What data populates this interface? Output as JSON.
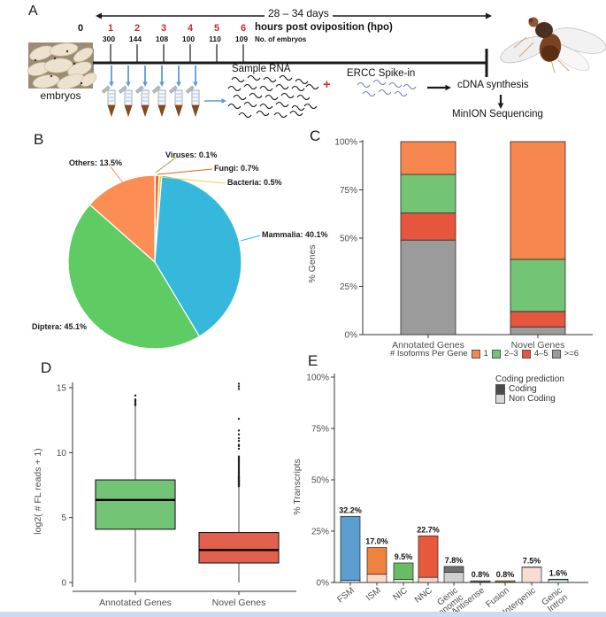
{
  "panelA": {
    "label": "A",
    "duration": "28 – 34 days",
    "hours": [
      "0",
      "1",
      "2",
      "3",
      "4",
      "5",
      "6"
    ],
    "hours_title": "hours post oviposition (hpo)",
    "embryo_counts": [
      "300",
      "144",
      "108",
      "100",
      "110",
      "109"
    ],
    "counts_caption": "No. of embryos",
    "embryos_caption": "embryos",
    "sample_rna": "Sample RNA",
    "plus": "+",
    "ercc": "ERCC Spike-in",
    "cdna": "cDNA synthesis",
    "minion": "MinION Sequencing"
  },
  "panelB": {
    "label": "B"
  },
  "panelC": {
    "label": "C"
  },
  "panelD": {
    "label": "D"
  },
  "panelE": {
    "label": "E"
  },
  "chart_data": [
    {
      "panel": "B",
      "type": "pie",
      "labels": [
        "Viruses",
        "Fungi",
        "Bacteria",
        "Mammalia",
        "Diptera",
        "Others"
      ],
      "values": [
        0.1,
        0.7,
        0.5,
        40.1,
        45.1,
        13.5
      ],
      "colors": [
        "#9aa83b",
        "#e0642e",
        "#e6d44e",
        "#35b8db",
        "#5ecc62",
        "#fb8d55"
      ],
      "start_angle": "12-oclock",
      "direction": "clockwise",
      "annotations": [
        {
          "slice": "Others",
          "text": "Others: 13.5%"
        },
        {
          "slice": "Viruses",
          "text": "Viruses: 0.1%"
        },
        {
          "slice": "Fungi",
          "text": "Fungi: 0.7%"
        },
        {
          "slice": "Bacteria",
          "text": "Bacteria: 0.5%"
        },
        {
          "slice": "Mammalia",
          "text": "Mammalia: 40.1%"
        },
        {
          "slice": "Diptera",
          "text": "Diptera: 45.1%"
        }
      ]
    },
    {
      "panel": "C",
      "type": "bar",
      "subtype": "stacked-percent",
      "ylabel": "% Genes",
      "yticks": [
        "0%",
        "25%",
        "50%",
        "75%",
        "100%"
      ],
      "ylim": [
        0,
        100
      ],
      "categories": [
        "Annotated Genes",
        "Novel Genes"
      ],
      "legend_title": "# Isoforms Per Gene",
      "legend_position": "bottom",
      "series": [
        {
          "name": "1",
          "color": "#f8864f",
          "values": [
            17,
            61
          ]
        },
        {
          "name": "2–3",
          "color": "#74c476",
          "values": [
            20,
            27
          ]
        },
        {
          "name": "4–5",
          "color": "#e6553d",
          "values": [
            14,
            8
          ]
        },
        {
          "name": ">=6",
          "color": "#9b9b9b",
          "values": [
            49,
            4
          ]
        }
      ],
      "stack_order": "top-to-bottom as listed"
    },
    {
      "panel": "D",
      "type": "boxplot",
      "ylabel": "log2( # FL reads + 1)",
      "yticks": [
        0,
        5,
        10,
        15
      ],
      "ylim": [
        0,
        15.5
      ],
      "categories": [
        "Annotated Genes",
        "Novel Genes"
      ],
      "boxes": [
        {
          "category": "Annotated Genes",
          "color": "#74c476",
          "whisker_low": 0,
          "q1": 4.1,
          "median": 6.35,
          "q3": 7.9,
          "whisker_high": 13.6,
          "outliers": [
            13.65,
            13.7,
            13.75,
            13.8,
            13.9,
            14.0,
            14.1,
            14.4
          ]
        },
        {
          "category": "Novel Genes",
          "color": "#e2614e",
          "whisker_low": 0,
          "q1": 1.5,
          "median": 2.5,
          "q3": 3.85,
          "whisker_high": 7.3,
          "outliers": [
            7.4,
            7.45,
            7.5,
            7.55,
            7.6,
            7.65,
            7.7,
            7.75,
            7.8,
            7.85,
            7.9,
            7.95,
            8.0,
            8.05,
            8.1,
            8.15,
            8.2,
            8.3,
            8.4,
            8.5,
            8.6,
            8.7,
            8.8,
            8.9,
            9.0,
            9.1,
            9.2,
            9.3,
            9.4,
            9.5,
            9.6,
            9.7,
            10.3,
            10.5,
            10.6,
            10.9,
            11.1,
            11.4,
            11.7,
            12.6,
            14.9,
            15.1,
            15.3
          ]
        }
      ]
    },
    {
      "panel": "E",
      "type": "bar",
      "subtype": "stacked",
      "ylabel": "% Transcripts",
      "yticks": [
        "0%",
        "25%",
        "50%",
        "75%",
        "100%"
      ],
      "ylim": [
        0,
        100
      ],
      "legend_title": "Coding prediction",
      "legend_items": [
        {
          "name": "Coding",
          "color": "#4a4a4a"
        },
        {
          "name": "Non Coding",
          "color": "#d9d9d9"
        }
      ],
      "categories": [
        "FSM",
        "ISM",
        "NIC",
        "NNC",
        "Genic\nGenomic",
        "Antisense",
        "Fusion",
        "Intergenic",
        "Genic\nIntron"
      ],
      "bars": [
        {
          "category": "FSM",
          "label": "32.2%",
          "total": 32.2,
          "coding": 31.2,
          "non_coding": 1.0,
          "coding_color": "#5b9ecf",
          "non_coding_color": "#cfe1f2"
        },
        {
          "category": "ISM",
          "label": "17.0%",
          "total": 17.0,
          "coding": 13.0,
          "non_coding": 4.0,
          "coding_color": "#f0823f",
          "non_coding_color": "#fad9c6"
        },
        {
          "category": "NIC",
          "label": "9.5%",
          "total": 9.5,
          "coding": 8.0,
          "non_coding": 1.5,
          "coding_color": "#66bd63",
          "non_coding_color": "#d9edd5"
        },
        {
          "category": "NNC",
          "label": "22.7%",
          "total": 22.7,
          "coding": 20.2,
          "non_coding": 2.5,
          "coding_color": "#e8593c",
          "non_coding_color": "#f8d3c9"
        },
        {
          "category": "Genic\nGenomic",
          "label": "7.8%",
          "total": 7.8,
          "coding": 2.8,
          "non_coding": 5.0,
          "coding_color": "#6f6f6f",
          "non_coding_color": "#d0d0d0"
        },
        {
          "category": "Antisense",
          "label": "0.8%",
          "total": 0.8,
          "coding": 0.6,
          "non_coding": 0.2,
          "coding_color": "#8a8a8a",
          "non_coding_color": "#d8d8d8"
        },
        {
          "category": "Fusion",
          "label": "0.8%",
          "total": 0.8,
          "coding": 0.7,
          "non_coding": 0.1,
          "coding_color": "#b0a03e",
          "non_coding_color": "#e6dfaf"
        },
        {
          "category": "Intergenic",
          "label": "7.5%",
          "total": 7.5,
          "coding": 0.1,
          "non_coding": 7.4,
          "coding_color": "#8a6a5a",
          "non_coding_color": "#f6ddd3"
        },
        {
          "category": "Genic\nIntron",
          "label": "1.6%",
          "total": 1.6,
          "coding": 0.2,
          "non_coding": 1.4,
          "coding_color": "#4a7e7a",
          "non_coding_color": "#cfe7e4"
        }
      ]
    }
  ]
}
